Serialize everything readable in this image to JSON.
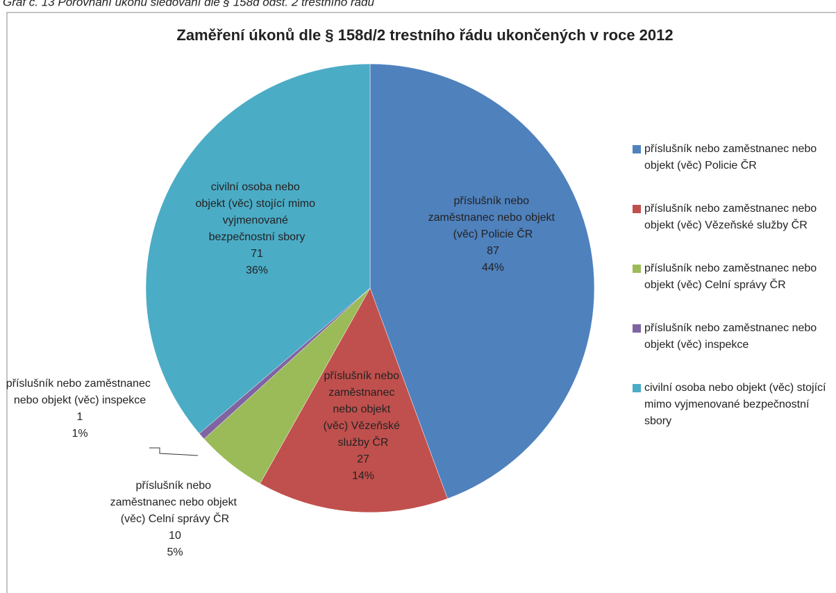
{
  "caption": "Graf č. 13 Porovnání úkonů sledování dle § 158d odst. 2 trestního řádu",
  "chart_data": {
    "type": "pie",
    "title": "Zaměření úkonů dle § 158d/2 trestního řádu ukončených v roce 2012",
    "categories": [
      "příslušník nebo zaměstnanec nebo objekt (věc) Policie ČR",
      "příslušník nebo zaměstnanec nebo objekt (věc) Vězeňské služby ČR",
      "příslušník nebo zaměstnanec nebo objekt (věc) Celní správy ČR",
      "příslušník nebo zaměstnanec nebo objekt (věc) inspekce",
      "civilní osoba nebo objekt (věc) stojící mimo vyjmenované bezpečnostní sbory"
    ],
    "values": [
      87,
      27,
      10,
      1,
      71
    ],
    "percentages": [
      "44%",
      "14%",
      "5%",
      "1%",
      "36%"
    ],
    "colors": [
      "#4f81bd",
      "#c0504d",
      "#9bbb59",
      "#8064a2",
      "#4bacc6"
    ],
    "legend": "right"
  }
}
